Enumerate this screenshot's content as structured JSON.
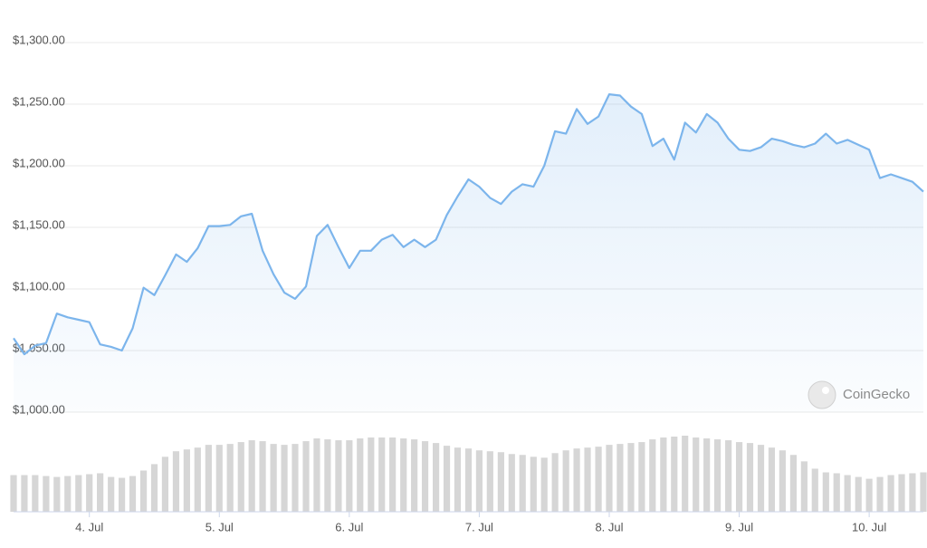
{
  "chart_data": {
    "type": "line",
    "x": [
      3.417,
      3.5,
      3.583,
      3.667,
      3.75,
      3.833,
      3.917,
      4,
      4.083,
      4.167,
      4.25,
      4.333,
      4.417,
      4.5,
      4.583,
      4.667,
      4.75,
      4.833,
      4.917,
      5,
      5.083,
      5.167,
      5.25,
      5.333,
      5.417,
      5.5,
      5.583,
      5.667,
      5.75,
      5.833,
      5.917,
      6,
      6.083,
      6.167,
      6.25,
      6.333,
      6.417,
      6.5,
      6.583,
      6.667,
      6.75,
      6.833,
      6.917,
      7,
      7.083,
      7.167,
      7.25,
      7.333,
      7.417,
      7.5,
      7.583,
      7.667,
      7.75,
      7.833,
      7.917,
      8,
      8.083,
      8.167,
      8.25,
      8.333,
      8.417,
      8.5,
      8.583,
      8.667,
      8.75,
      8.833,
      8.917,
      9,
      9.083,
      9.167,
      9.25,
      9.333,
      9.417,
      9.5,
      9.583,
      9.667,
      9.75,
      9.833,
      9.917,
      10,
      10.083,
      10.167,
      10.25,
      10.333,
      10.417
    ],
    "values": [
      1060,
      1047,
      1054,
      1056,
      1080,
      1077,
      1075,
      1073,
      1055,
      1053,
      1050,
      1068,
      1101,
      1095,
      1111,
      1128,
      1122,
      1133,
      1151,
      1151,
      1152,
      1159,
      1161,
      1131,
      1112,
      1097,
      1092,
      1102,
      1143,
      1152,
      1134,
      1117,
      1131,
      1131,
      1140,
      1144,
      1134,
      1140,
      1134,
      1140,
      1160,
      1175,
      1189,
      1183,
      1174,
      1169,
      1179,
      1185,
      1183,
      1200,
      1228,
      1226,
      1246,
      1234,
      1240,
      1258,
      1257,
      1248,
      1242,
      1216,
      1222,
      1205,
      1235,
      1227,
      1242,
      1235,
      1222,
      1213,
      1212,
      1215,
      1222,
      1220,
      1217,
      1215,
      1218,
      1226,
      1218,
      1221,
      1217,
      1213,
      1190,
      1193,
      1190,
      1187,
      1179
    ],
    "color": "#7cb5ec",
    "xlim": [
      3.417,
      10.417
    ],
    "xticks": [
      {
        "value": 4,
        "label": "4. Jul"
      },
      {
        "value": 5,
        "label": "5. Jul"
      },
      {
        "value": 6,
        "label": "6. Jul"
      },
      {
        "value": 7,
        "label": "7. Jul"
      },
      {
        "value": 8,
        "label": "8. Jul"
      },
      {
        "value": 9,
        "label": "9. Jul"
      },
      {
        "value": 10,
        "label": "10. Jul"
      }
    ],
    "ylim": [
      1000,
      1300
    ],
    "yticks": [
      {
        "value": 1000,
        "label": "$1,000.00"
      },
      {
        "value": 1050,
        "label": "$1,050.00"
      },
      {
        "value": 1100,
        "label": "$1,100.00"
      },
      {
        "value": 1150,
        "label": "$1,150.00"
      },
      {
        "value": 1200,
        "label": "$1,200.00"
      },
      {
        "value": 1250,
        "label": "$1,250.00"
      },
      {
        "value": 1300,
        "label": "$1,300.00"
      }
    ],
    "grid": true,
    "volume": {
      "values": [
        40,
        40,
        40,
        39,
        38,
        39,
        40,
        41,
        42,
        38,
        37,
        39,
        45,
        52,
        60,
        66,
        68,
        70,
        73,
        73,
        74,
        76,
        78,
        77,
        74,
        73,
        74,
        77,
        80,
        79,
        78,
        78,
        80,
        81,
        81,
        81,
        80,
        79,
        77,
        75,
        72,
        70,
        69,
        67,
        66,
        65,
        63,
        62,
        60,
        59,
        64,
        67,
        69,
        70,
        71,
        73,
        74,
        75,
        76,
        79,
        81,
        82,
        83,
        81,
        80,
        79,
        78,
        76,
        75,
        73,
        70,
        67,
        62,
        55,
        47,
        43,
        42,
        40,
        38,
        36,
        38,
        40,
        41,
        42,
        43
      ],
      "color": "#d6d6d6"
    },
    "watermark": "CoinGecko"
  }
}
